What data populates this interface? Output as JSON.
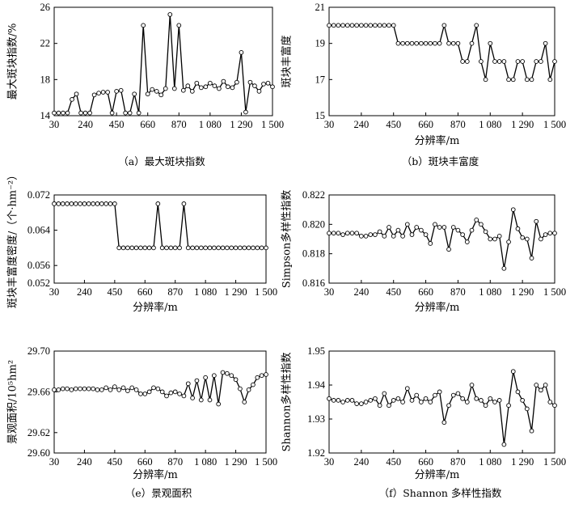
{
  "chart_data": [
    {
      "type": "line",
      "caption": "（a）最大斑块指数",
      "xlabel": "",
      "ylabel": "最大斑块指数/%",
      "xlim": [
        30,
        1500
      ],
      "ylim": [
        14,
        26
      ],
      "xticks": [
        30,
        240,
        450,
        660,
        870,
        1080,
        1290,
        1500
      ],
      "xticklabels": [
        "30",
        "240",
        "450",
        "660",
        "870",
        "1 080",
        "1 290",
        "1 500"
      ],
      "yticks": [
        14,
        18,
        22,
        26
      ],
      "yticklabels": [
        "14",
        "18",
        "22",
        "26"
      ],
      "x": [
        30,
        60,
        90,
        120,
        150,
        180,
        210,
        240,
        270,
        300,
        330,
        360,
        390,
        420,
        450,
        480,
        510,
        540,
        570,
        600,
        630,
        660,
        690,
        720,
        750,
        780,
        810,
        840,
        870,
        900,
        930,
        960,
        990,
        1020,
        1050,
        1080,
        1110,
        1140,
        1170,
        1200,
        1230,
        1260,
        1290,
        1320,
        1350,
        1380,
        1410,
        1440,
        1470,
        1500
      ],
      "y": [
        14.3,
        14.3,
        14.3,
        14.3,
        15.8,
        16.4,
        14.3,
        14.3,
        14.3,
        16.3,
        16.5,
        16.6,
        16.6,
        14.3,
        16.7,
        16.8,
        14.3,
        14.3,
        16.4,
        14.3,
        24.0,
        16.4,
        16.9,
        16.7,
        16.3,
        17.0,
        25.2,
        17.0,
        24.0,
        16.8,
        17.3,
        16.7,
        17.6,
        17.1,
        17.2,
        17.6,
        17.3,
        17.0,
        17.8,
        17.2,
        17.1,
        17.7,
        21.0,
        14.4,
        17.7,
        17.3,
        16.7,
        17.5,
        17.6,
        17.2
      ]
    },
    {
      "type": "line",
      "caption": "（b）斑块丰富度",
      "xlabel": "分辨率/m",
      "ylabel": "斑块丰富度",
      "xlim": [
        30,
        1500
      ],
      "ylim": [
        15,
        21
      ],
      "xticks": [
        30,
        240,
        450,
        660,
        870,
        1080,
        1290,
        1500
      ],
      "xticklabels": [
        "30",
        "240",
        "450",
        "660",
        "870",
        "1 080",
        "1 290",
        "1 500"
      ],
      "yticks": [
        15,
        17,
        19,
        21
      ],
      "yticklabels": [
        "15",
        "17",
        "19",
        "21"
      ],
      "x": [
        30,
        60,
        90,
        120,
        150,
        180,
        210,
        240,
        270,
        300,
        330,
        360,
        390,
        420,
        450,
        480,
        510,
        540,
        570,
        600,
        630,
        660,
        690,
        720,
        750,
        780,
        810,
        840,
        870,
        900,
        930,
        960,
        990,
        1020,
        1050,
        1080,
        1110,
        1140,
        1170,
        1200,
        1230,
        1260,
        1290,
        1320,
        1350,
        1380,
        1410,
        1440,
        1470,
        1500
      ],
      "y": [
        20,
        20,
        20,
        20,
        20,
        20,
        20,
        20,
        20,
        20,
        20,
        20,
        20,
        20,
        20,
        19,
        19,
        19,
        19,
        19,
        19,
        19,
        19,
        19,
        19,
        20,
        19,
        19,
        19,
        18,
        18,
        19,
        20,
        18,
        17,
        19,
        18,
        18,
        18,
        17,
        17,
        18,
        18,
        17,
        17,
        18,
        18,
        19,
        17,
        18
      ]
    },
    {
      "type": "line",
      "caption": "",
      "xlabel": "分辨率/m",
      "ylabel": "斑块丰富度密度/（个·hm⁻²）",
      "xlim": [
        30,
        1500
      ],
      "ylim": [
        0.052,
        0.072
      ],
      "xticks": [
        30,
        240,
        450,
        660,
        870,
        1080,
        1290,
        1500
      ],
      "xticklabels": [
        "30",
        "240",
        "450",
        "660",
        "870",
        "1 080",
        "1 290",
        "1 500"
      ],
      "yticks": [
        0.052,
        0.056,
        0.064,
        0.072
      ],
      "yticklabels": [
        "0.052",
        "0.056",
        "0.064",
        "0.072"
      ],
      "x": [
        30,
        60,
        90,
        120,
        150,
        180,
        210,
        240,
        270,
        300,
        330,
        360,
        390,
        420,
        450,
        480,
        510,
        540,
        570,
        600,
        630,
        660,
        690,
        720,
        750,
        780,
        810,
        840,
        870,
        900,
        930,
        960,
        990,
        1020,
        1050,
        1080,
        1110,
        1140,
        1170,
        1200,
        1230,
        1260,
        1290,
        1320,
        1350,
        1380,
        1410,
        1440,
        1470,
        1500
      ],
      "y": [
        0.07,
        0.07,
        0.07,
        0.07,
        0.07,
        0.07,
        0.07,
        0.07,
        0.07,
        0.07,
        0.07,
        0.07,
        0.07,
        0.07,
        0.07,
        0.06,
        0.06,
        0.06,
        0.06,
        0.06,
        0.06,
        0.06,
        0.06,
        0.06,
        0.07,
        0.06,
        0.06,
        0.06,
        0.06,
        0.06,
        0.07,
        0.06,
        0.06,
        0.06,
        0.06,
        0.06,
        0.06,
        0.06,
        0.06,
        0.06,
        0.06,
        0.06,
        0.06,
        0.06,
        0.06,
        0.06,
        0.06,
        0.06,
        0.06,
        0.06
      ]
    },
    {
      "type": "line",
      "caption": "",
      "xlabel": "分辨率/m",
      "ylabel": "Simpson多样性指数",
      "xlim": [
        30,
        1500
      ],
      "ylim": [
        0.816,
        0.822
      ],
      "xticks": [
        30,
        240,
        450,
        660,
        870,
        1080,
        1290,
        1500
      ],
      "xticklabels": [
        "30",
        "240",
        "450",
        "660",
        "870",
        "1 080",
        "1 290",
        "1 500"
      ],
      "yticks": [
        0.816,
        0.818,
        0.82,
        0.822
      ],
      "yticklabels": [
        "0.816",
        "0.818",
        "0.820",
        "0.822"
      ],
      "x": [
        30,
        60,
        90,
        120,
        150,
        180,
        210,
        240,
        270,
        300,
        330,
        360,
        390,
        420,
        450,
        480,
        510,
        540,
        570,
        600,
        630,
        660,
        690,
        720,
        750,
        780,
        810,
        840,
        870,
        900,
        930,
        960,
        990,
        1020,
        1050,
        1080,
        1110,
        1140,
        1170,
        1200,
        1230,
        1260,
        1290,
        1320,
        1350,
        1380,
        1410,
        1440,
        1470,
        1500
      ],
      "y": [
        0.8194,
        0.8194,
        0.8194,
        0.8193,
        0.8194,
        0.8194,
        0.8194,
        0.8192,
        0.8192,
        0.8193,
        0.8193,
        0.8195,
        0.8192,
        0.8198,
        0.8192,
        0.8196,
        0.8192,
        0.82,
        0.8193,
        0.8198,
        0.8196,
        0.8193,
        0.8187,
        0.82,
        0.8198,
        0.8198,
        0.8183,
        0.8198,
        0.8196,
        0.8193,
        0.8188,
        0.8196,
        0.8203,
        0.82,
        0.8195,
        0.819,
        0.819,
        0.8192,
        0.817,
        0.8188,
        0.821,
        0.8197,
        0.8191,
        0.819,
        0.8177,
        0.8202,
        0.819,
        0.8193,
        0.8194,
        0.8194
      ]
    },
    {
      "type": "line",
      "caption": "（e）景观面积",
      "xlabel": "分辨率/m",
      "ylabel": "景观面积/10⁵hm²",
      "xlim": [
        30,
        1500
      ],
      "ylim": [
        29.6,
        29.7
      ],
      "xticks": [
        30,
        240,
        450,
        660,
        870,
        1080,
        1290,
        1500
      ],
      "xticklabels": [
        "30",
        "240",
        "450",
        "660",
        "870",
        "1 080",
        "1 290",
        "1 500"
      ],
      "yticks": [
        29.6,
        29.62,
        29.66,
        29.7
      ],
      "yticklabels": [
        "29.60",
        "29.62",
        "29.66",
        "29.70"
      ],
      "x": [
        30,
        60,
        90,
        120,
        150,
        180,
        210,
        240,
        270,
        300,
        330,
        360,
        390,
        420,
        450,
        480,
        510,
        540,
        570,
        600,
        630,
        660,
        690,
        720,
        750,
        780,
        810,
        840,
        870,
        900,
        930,
        960,
        990,
        1020,
        1050,
        1080,
        1110,
        1140,
        1170,
        1200,
        1230,
        1260,
        1290,
        1320,
        1350,
        1380,
        1410,
        1440,
        1470,
        1500
      ],
      "y": [
        29.662,
        29.662,
        29.663,
        29.663,
        29.662,
        29.663,
        29.663,
        29.663,
        29.663,
        29.663,
        29.662,
        29.662,
        29.664,
        29.662,
        29.665,
        29.662,
        29.664,
        29.661,
        29.664,
        29.662,
        29.658,
        29.658,
        29.66,
        29.664,
        29.663,
        29.66,
        29.656,
        29.659,
        29.66,
        29.658,
        29.656,
        29.668,
        29.654,
        29.671,
        29.652,
        29.674,
        29.652,
        29.676,
        29.648,
        29.679,
        29.678,
        29.676,
        29.672,
        29.663,
        29.65,
        29.662,
        29.667,
        29.674,
        29.676,
        29.677
      ]
    },
    {
      "type": "line",
      "caption": "（f）Shannon 多样性指数",
      "xlabel": "分辨率/m",
      "ylabel": "Shannon多样性指数",
      "xlim": [
        30,
        1500
      ],
      "ylim": [
        1.92,
        1.95
      ],
      "xticks": [
        30,
        240,
        450,
        660,
        870,
        1080,
        1290,
        1500
      ],
      "xticklabels": [
        "30",
        "240",
        "450",
        "660",
        "870",
        "1 080",
        "1 290",
        "1 500"
      ],
      "yticks": [
        1.92,
        1.93,
        1.94,
        1.95
      ],
      "yticklabels": [
        "1.92",
        "1.93",
        "1.94",
        "1.95"
      ],
      "x": [
        30,
        60,
        90,
        120,
        150,
        180,
        210,
        240,
        270,
        300,
        330,
        360,
        390,
        420,
        450,
        480,
        510,
        540,
        570,
        600,
        630,
        660,
        690,
        720,
        750,
        780,
        810,
        840,
        870,
        900,
        930,
        960,
        990,
        1020,
        1050,
        1080,
        1110,
        1140,
        1170,
        1200,
        1230,
        1260,
        1290,
        1320,
        1350,
        1380,
        1410,
        1440,
        1470,
        1500
      ],
      "y": [
        1.936,
        1.9355,
        1.9355,
        1.935,
        1.9355,
        1.9355,
        1.9345,
        1.9345,
        1.935,
        1.9355,
        1.936,
        1.934,
        1.9375,
        1.934,
        1.9355,
        1.936,
        1.935,
        1.939,
        1.9355,
        1.937,
        1.935,
        1.936,
        1.935,
        1.937,
        1.938,
        1.929,
        1.934,
        1.937,
        1.9375,
        1.936,
        1.935,
        1.94,
        1.936,
        1.9355,
        1.934,
        1.936,
        1.935,
        1.9355,
        1.9225,
        1.934,
        1.944,
        1.938,
        1.9355,
        1.933,
        1.9265,
        1.94,
        1.9385,
        1.94,
        1.935,
        1.934
      ]
    }
  ]
}
